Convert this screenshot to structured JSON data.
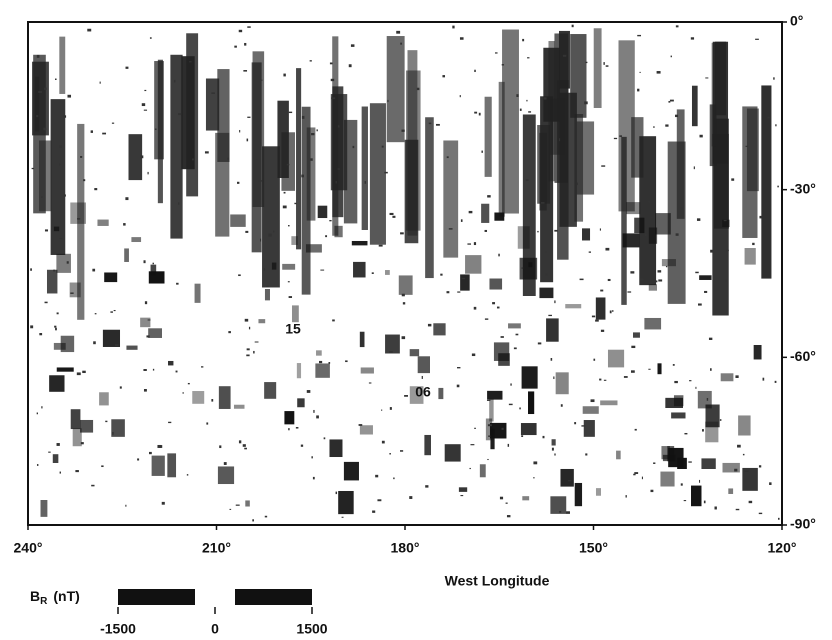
{
  "chart_data": {
    "type": "map",
    "xlabel": "West Longitude",
    "xlim": [
      240,
      120
    ],
    "ylim": [
      -90,
      0
    ],
    "xticks": [
      {
        "value": 240,
        "label": "240°"
      },
      {
        "value": 210,
        "label": "210°"
      },
      {
        "value": 180,
        "label": "180°"
      },
      {
        "value": 150,
        "label": "150°"
      },
      {
        "value": 120,
        "label": "120°"
      }
    ],
    "yticks": [
      {
        "value": 0,
        "label": "0°"
      },
      {
        "value": -30,
        "label": "-30°"
      },
      {
        "value": -60,
        "label": "-60°"
      },
      {
        "value": -90,
        "label": "-90°"
      }
    ],
    "annotations": [
      "15",
      "06"
    ],
    "colorbar": {
      "label": "B",
      "label_subscript": "R",
      "units": "(nT)",
      "range": [
        -1500,
        1500
      ],
      "ticks": [
        -1500,
        0,
        1500
      ]
    }
  }
}
